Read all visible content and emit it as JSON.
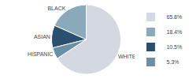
{
  "chart_data": {
    "type": "pie",
    "categories": [
      "WHITE",
      "BLACK",
      "ASIAN",
      "HISPANIC"
    ],
    "values": [
      65.8,
      18.4,
      10.5,
      5.3
    ],
    "value_labels": [
      "65.8%",
      "18.4%",
      "10.5%",
      "5.3%"
    ],
    "colors": [
      "#d4d8e0",
      "#8aaabb",
      "#2b4f6e",
      "#6b8fa5"
    ],
    "legend": "right"
  }
}
